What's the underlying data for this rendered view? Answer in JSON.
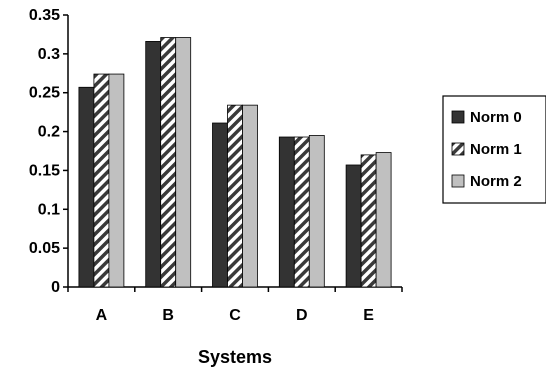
{
  "chart_data": {
    "type": "bar",
    "title": "",
    "xlabel": "Systems",
    "ylabel": "",
    "ylim": [
      0,
      0.35
    ],
    "y_ticks": [
      "0",
      "0.05",
      "0.1",
      "0.15",
      "0.2",
      "0.25",
      "0.3",
      "0.35"
    ],
    "categories": [
      "A",
      "B",
      "C",
      "D",
      "E"
    ],
    "series": [
      {
        "name": "Norm 0",
        "values": [
          0.257,
          0.316,
          0.211,
          0.193,
          0.157
        ],
        "pattern": "solid-dark",
        "color": "#333333"
      },
      {
        "name": "Norm 1",
        "values": [
          0.274,
          0.321,
          0.234,
          0.193,
          0.17
        ],
        "pattern": "diagonal-stripes",
        "color": "#3a3a3a"
      },
      {
        "name": "Norm 2",
        "values": [
          0.274,
          0.321,
          0.234,
          0.195,
          0.173
        ],
        "pattern": "solid-light",
        "color": "#c0c0c0"
      }
    ],
    "grid": false,
    "legend_position": "right"
  }
}
